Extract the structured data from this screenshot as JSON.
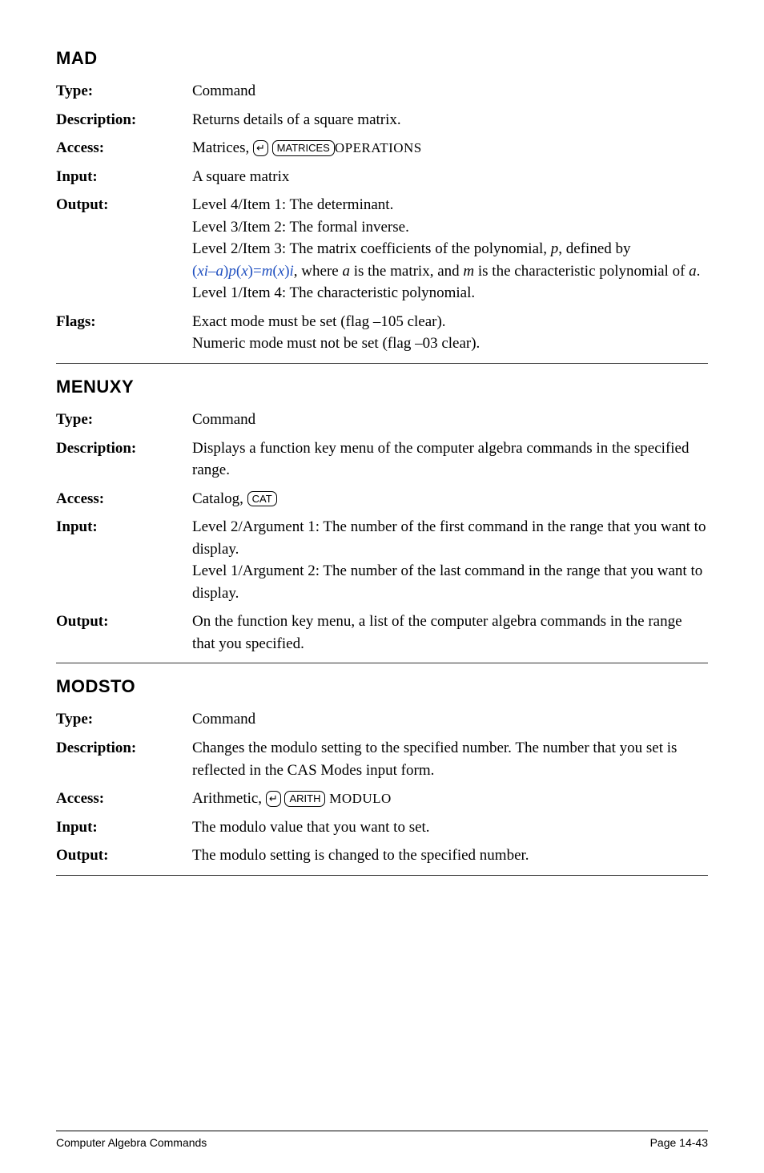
{
  "sections": [
    {
      "title": "MAD",
      "rows": [
        {
          "label": "Type:",
          "html": "Command"
        },
        {
          "label": "Description:",
          "html": "Returns details of a square matrix."
        },
        {
          "label": "Access:",
          "html": "Matrices, <span class='keycap shift'>&#8629;</span> <span class='keycap'>MATRICES</span><span class='sc'>OPERATIONS</span>"
        },
        {
          "label": "Input:",
          "html": "A square matrix"
        },
        {
          "label": "Output:",
          "html": "Level 4/Item 1: The determinant.<br>Level 3/Item 2: The formal inverse.<br>Level 2/Item 3: The matrix coefficients of the polynomial, <span class='italic'>p</span>, defined by<br><span class='bluemath'>(<span class='italic'>xi</span>&ndash;<span class='italic'>a</span>)<span class='italic'>p</span>(<span class='italic'>x</span>)=<span class='italic'>m</span>(<span class='italic'>x</span>)<span class='italic'>i</span></span>, where <span class='italic'>a</span> is the matrix, and <span class='italic'>m</span> is the characteristic polynomial of <span class='italic'>a</span>.<br>Level 1/Item 4: The characteristic polynomial."
        },
        {
          "label": "Flags:",
          "html": "Exact mode must be set (flag &ndash;105 clear).<br>Numeric mode must not be set (flag &ndash;03 clear)."
        }
      ]
    },
    {
      "title": "MENUXY",
      "rows": [
        {
          "label": "Type:",
          "html": "Command"
        },
        {
          "label": "Description:",
          "html": "Displays a function key menu of the computer algebra commands in the specified range."
        },
        {
          "label": "Access:",
          "html": "Catalog, <span class='keycap'>CAT</span>"
        },
        {
          "label": "Input:",
          "html": "Level 2/Argument 1: The number of the first command in the range that you want to display.<br>Level 1/Argument 2: The number of the last command in the range that you want to display."
        },
        {
          "label": "Output:",
          "html": "On the function key menu, a list of the computer algebra commands in the range that you specified."
        }
      ]
    },
    {
      "title": "MODSTO",
      "rows": [
        {
          "label": "Type:",
          "html": "Command"
        },
        {
          "label": "Description:",
          "html": "Changes the modulo setting to the specified number. The number that you set is reflected in the CAS Modes input form."
        },
        {
          "label": "Access:",
          "html": "Arithmetic, <span class='keycap shift'>&#8629;</span> <span class='keycap'>ARITH</span> <span class='sc'>MODULO</span>"
        },
        {
          "label": "Input:",
          "html": "The modulo value that you want to set."
        },
        {
          "label": "Output:",
          "html": "The modulo setting is changed to the specified number."
        }
      ]
    }
  ],
  "footer": {
    "left": "Computer Algebra Commands",
    "right": "Page 14-43"
  }
}
